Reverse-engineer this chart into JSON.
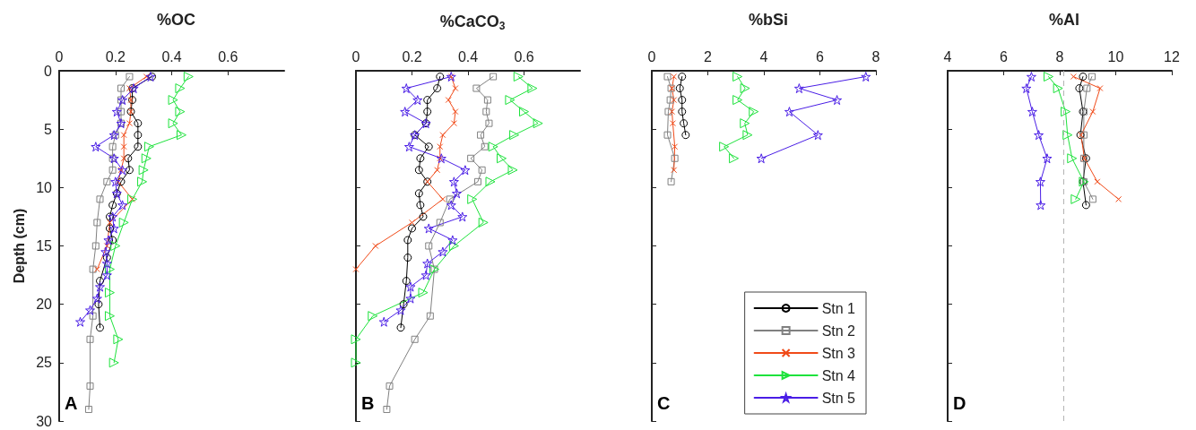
{
  "chart_data": [
    {
      "type": "line",
      "title": "%OC",
      "ylabel": "Depth (cm)",
      "annotations": [
        "A"
      ],
      "xlim": [
        0,
        0.8
      ],
      "xticks": [
        0,
        0.2,
        0.4,
        0.6
      ],
      "ylim": [
        30,
        0
      ],
      "yticks": [
        0,
        5,
        10,
        15,
        20,
        25,
        30
      ],
      "grid": false,
      "series": [
        {
          "color": "#000000",
          "marker": "circle",
          "x": [
            0.33,
            0.26,
            0.26,
            0.255,
            0.28,
            0.28,
            0.28,
            0.245,
            0.25,
            0.22,
            0.205,
            0.19,
            0.18,
            0.18,
            0.19,
            0.17,
            0.145,
            0.14,
            0.145
          ],
          "values": [
            0.5,
            1.5,
            2.5,
            3.5,
            4.5,
            5.5,
            6.5,
            7.5,
            8.5,
            9.5,
            10.5,
            11.5,
            12.5,
            13.5,
            14.5,
            16,
            18,
            20,
            22
          ]
        },
        {
          "color": "#808080",
          "marker": "square",
          "x": [
            0.25,
            0.22,
            0.22,
            0.22,
            0.22,
            0.2,
            0.19,
            0.19,
            0.19,
            0.17,
            0.145,
            0.135,
            0.13,
            0.12,
            0.12,
            0.11,
            0.11,
            0.105
          ],
          "values": [
            0.5,
            1.5,
            2.5,
            3.5,
            4.5,
            5.5,
            6.5,
            7.5,
            8.5,
            9.5,
            11,
            13,
            15,
            17,
            21,
            23,
            27,
            29
          ]
        },
        {
          "color": "#f04a18",
          "marker": "cross",
          "x": [
            0.31,
            0.25,
            0.255,
            0.255,
            0.25,
            0.23,
            0.23,
            0.23,
            0.22,
            0.21,
            0.26,
            0.18,
            0.17,
            0.135
          ],
          "values": [
            0.5,
            1.5,
            2.5,
            3.5,
            4.5,
            5.5,
            6.5,
            7.5,
            8.5,
            9.5,
            11,
            13,
            15,
            17
          ]
        },
        {
          "color": "#1ee23c",
          "marker": "triangle",
          "x": [
            0.46,
            0.43,
            0.405,
            0.43,
            0.405,
            0.435,
            0.32,
            0.31,
            0.3,
            0.295,
            0.26,
            0.23,
            0.2,
            0.18,
            0.18,
            0.18,
            0.21,
            0.195
          ],
          "values": [
            0.5,
            1.5,
            2.5,
            3.5,
            4.5,
            5.5,
            6.5,
            7.5,
            8.5,
            9.5,
            11,
            13,
            15,
            17,
            19,
            21,
            23,
            25
          ]
        },
        {
          "color": "#4a1ee6",
          "marker": "star",
          "x": [
            0.325,
            0.265,
            0.225,
            0.205,
            0.22,
            0.195,
            0.13,
            0.195,
            0.225,
            0.2,
            0.205,
            0.225,
            0.19,
            0.195,
            0.175,
            0.165,
            0.17,
            0.17,
            0.145,
            0.135,
            0.11,
            0.075
          ],
          "values": [
            0.5,
            1.5,
            2.5,
            3.5,
            4.5,
            5.5,
            6.5,
            7.5,
            8.5,
            9.5,
            10.5,
            11.5,
            12.5,
            13.5,
            14.5,
            15.5,
            16.5,
            17.5,
            18.5,
            19.5,
            20.5,
            21.5
          ]
        }
      ]
    },
    {
      "type": "line",
      "title": "%CaCO$_{3}$",
      "annotations": [
        "B"
      ],
      "xlim": [
        0,
        0.8
      ],
      "xticks": [
        0,
        0.2,
        0.4,
        0.6
      ],
      "ylim": [
        30,
        0
      ],
      "yticks": [
        0,
        5,
        10,
        15,
        20,
        25,
        30
      ],
      "tick_labels": "x",
      "grid": false,
      "series": [
        {
          "color": "#000000",
          "marker": "circle",
          "x": [
            0.3,
            0.29,
            0.255,
            0.255,
            0.25,
            0.21,
            0.26,
            0.23,
            0.225,
            0.255,
            0.225,
            0.23,
            0.24,
            0.2,
            0.185,
            0.185,
            0.18,
            0.17,
            0.16
          ],
          "values": [
            0.5,
            1.5,
            2.5,
            3.5,
            4.5,
            5.5,
            6.5,
            7.5,
            8.5,
            9.5,
            10.5,
            11.5,
            12.5,
            13.5,
            14.5,
            16,
            18,
            20,
            22
          ]
        },
        {
          "color": "#808080",
          "marker": "square",
          "x": [
            0.49,
            0.43,
            0.47,
            0.465,
            0.475,
            0.445,
            0.46,
            0.41,
            0.45,
            0.435,
            0.335,
            0.3,
            0.26,
            0.28,
            0.265,
            0.21,
            0.12,
            0.11
          ],
          "values": [
            0.5,
            1.5,
            2.5,
            3.5,
            4.5,
            5.5,
            6.5,
            7.5,
            8.5,
            9.5,
            11,
            13,
            15,
            17,
            21,
            23,
            27,
            29
          ]
        },
        {
          "color": "#f04a18",
          "marker": "cross",
          "x": [
            0.34,
            0.355,
            0.33,
            0.355,
            0.35,
            0.31,
            0.3,
            0.3,
            0.29,
            0.255,
            0.31,
            0.2,
            0.07,
            0
          ],
          "values": [
            0.5,
            1.5,
            2.5,
            3.5,
            4.5,
            5.5,
            6.5,
            7.5,
            8.5,
            9.5,
            11,
            13,
            15,
            17
          ]
        },
        {
          "color": "#1ee23c",
          "marker": "triangle",
          "x": [
            0.58,
            0.63,
            0.55,
            0.6,
            0.65,
            0.565,
            0.49,
            0.52,
            0.56,
            0.48,
            0.415,
            0.455,
            0.35,
            0.28,
            0.24,
            0.06,
            0,
            0
          ],
          "values": [
            0.5,
            1.5,
            2.5,
            3.5,
            4.5,
            5.5,
            6.5,
            7.5,
            8.5,
            9.5,
            11,
            13,
            15,
            17,
            19,
            21,
            23,
            25
          ]
        },
        {
          "color": "#4a1ee6",
          "marker": "star",
          "x": [
            0.34,
            0.18,
            0.22,
            0.175,
            0.25,
            0.21,
            0.19,
            0.305,
            0.39,
            0.35,
            0.36,
            0.34,
            0.38,
            0.26,
            0.345,
            0.31,
            0.255,
            0.25,
            0.195,
            0.195,
            0.16,
            0.1
          ],
          "values": [
            0.5,
            1.5,
            2.5,
            3.5,
            4.5,
            5.5,
            6.5,
            7.5,
            8.5,
            9.5,
            10.5,
            11.5,
            12.5,
            13.5,
            14.5,
            15.5,
            16.5,
            17.5,
            18.5,
            19.5,
            20.5,
            21.5
          ]
        }
      ]
    },
    {
      "type": "line",
      "title": "%bSi",
      "annotations": [
        "C"
      ],
      "xlim": [
        0,
        8
      ],
      "xticks": [
        0,
        2,
        4,
        6,
        8
      ],
      "ylim": [
        30,
        0
      ],
      "yticks": [
        0,
        5,
        10,
        15,
        20,
        25,
        30
      ],
      "tick_labels": "x",
      "grid": false,
      "legend": "bottom right",
      "series": [
        {
          "name": "Stn 1",
          "color": "#000000",
          "marker": "circle",
          "x": [
            1.08,
            1.0,
            1.08,
            1.08,
            1.14,
            1.21
          ],
          "values": [
            0.5,
            1.5,
            2.5,
            3.5,
            4.5,
            5.5
          ]
        },
        {
          "name": "Stn 2",
          "color": "#808080",
          "marker": "square",
          "x": [
            0.56,
            0.69,
            0.66,
            0.59,
            0.56,
            0.82,
            0.69
          ],
          "values": [
            0.5,
            1.5,
            2.5,
            3.5,
            5.5,
            7.5,
            9.5
          ]
        },
        {
          "name": "Stn 3",
          "color": "#f04a18",
          "marker": "cross",
          "x": [
            0.79,
            0.72,
            0.79,
            0.72,
            0.75,
            0.82,
            0.79
          ],
          "values": [
            0.5,
            1.5,
            2.5,
            3.5,
            4.5,
            6.5,
            8.5
          ]
        },
        {
          "name": "Stn 4",
          "color": "#1ee23c",
          "marker": "triangle",
          "x": [
            3.06,
            3.33,
            3.06,
            3.64,
            3.32,
            3.42,
            2.58,
            2.93
          ],
          "values": [
            0.5,
            1.5,
            2.5,
            3.5,
            4.5,
            5.5,
            6.5,
            7.5
          ]
        },
        {
          "name": "Stn 5",
          "color": "#4a1ee6",
          "marker": "star",
          "x": [
            7.64,
            5.26,
            6.61,
            4.91,
            5.93,
            3.91
          ],
          "values": [
            0.5,
            1.5,
            2.5,
            3.5,
            5.5,
            7.5
          ]
        }
      ]
    },
    {
      "type": "line",
      "title": "%Al",
      "annotations": [
        "D"
      ],
      "xlim": [
        4,
        12
      ],
      "xticks": [
        4,
        6,
        8,
        10,
        12
      ],
      "ylim": [
        30,
        0
      ],
      "yticks": [
        0,
        5,
        10,
        15,
        20,
        25,
        30
      ],
      "tick_labels": "x",
      "grid": false,
      "ref_lines": [
        {
          "axis": "x",
          "value": 8.13,
          "color": "#b4b4b4",
          "line_style": "dashed"
        }
      ],
      "series": [
        {
          "color": "#000000",
          "marker": "circle",
          "x": [
            8.83,
            8.7,
            8.83,
            8.74,
            8.94,
            8.83,
            8.94
          ],
          "values": [
            0.5,
            1.5,
            3.5,
            5.5,
            7.5,
            9.5,
            11.5
          ]
        },
        {
          "color": "#808080",
          "marker": "square",
          "x": [
            9.15,
            8.97,
            8.86,
            8.86,
            8.86,
            8.86,
            9.18
          ],
          "values": [
            0.5,
            1.5,
            3.5,
            5.5,
            7.5,
            9.5,
            11
          ]
        },
        {
          "color": "#f04a18",
          "marker": "cross",
          "x": [
            8.49,
            9.44,
            9.18,
            8.76,
            8.88,
            9.34,
            10.1
          ],
          "values": [
            0.5,
            1.5,
            3.5,
            5.5,
            7.5,
            9.5,
            11
          ]
        },
        {
          "color": "#1ee23c",
          "marker": "triangle",
          "x": [
            7.6,
            7.94,
            8.21,
            8.28,
            8.44,
            8.86,
            8.57
          ],
          "values": [
            0.5,
            1.5,
            3.5,
            5.5,
            7.5,
            9.5,
            11
          ]
        },
        {
          "color": "#4a1ee6",
          "marker": "star",
          "x": [
            6.99,
            6.81,
            7.02,
            7.25,
            7.55,
            7.31,
            7.32
          ],
          "values": [
            0.5,
            1.5,
            3.5,
            5.5,
            7.5,
            9.5,
            11.5
          ]
        }
      ]
    }
  ]
}
